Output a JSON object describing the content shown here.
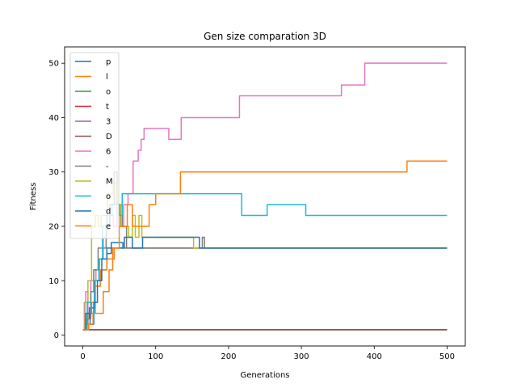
{
  "chart_data": {
    "type": "line",
    "title": "Gen size comparation 3D",
    "xlabel": "Generations",
    "ylabel": "Fitness",
    "xlim": [
      -25,
      525
    ],
    "ylim": [
      -2,
      53
    ],
    "xticks": [
      0,
      100,
      200,
      300,
      400,
      500
    ],
    "yticks": [
      0,
      10,
      20,
      30,
      40,
      50
    ],
    "grid": false,
    "legend_position": "upper-left",
    "series": [
      {
        "name": "p",
        "color": "#1f77b4",
        "points": [
          [
            0,
            1
          ],
          [
            4,
            1
          ],
          [
            4,
            3
          ],
          [
            9,
            3
          ],
          [
            9,
            5
          ],
          [
            16,
            5
          ],
          [
            16,
            10
          ],
          [
            25,
            10
          ],
          [
            25,
            12
          ],
          [
            33,
            12
          ],
          [
            33,
            15
          ],
          [
            39,
            15
          ],
          [
            39,
            17
          ],
          [
            55,
            17
          ],
          [
            55,
            16
          ],
          [
            500,
            16
          ]
        ]
      },
      {
        "name": "l",
        "color": "#ff7f0e",
        "points": [
          [
            0,
            1
          ],
          [
            5,
            1
          ],
          [
            5,
            3
          ],
          [
            11,
            3
          ],
          [
            11,
            6
          ],
          [
            17,
            6
          ],
          [
            17,
            9
          ],
          [
            24,
            9
          ],
          [
            24,
            12
          ],
          [
            33,
            12
          ],
          [
            33,
            14
          ],
          [
            43,
            14
          ],
          [
            43,
            16
          ],
          [
            500,
            16
          ]
        ]
      },
      {
        "name": "o",
        "color": "#2ca02c",
        "points": [
          [
            0,
            1
          ],
          [
            500,
            1
          ]
        ]
      },
      {
        "name": "t",
        "color": "#d62728",
        "points": [
          [
            0,
            1
          ],
          [
            500,
            1
          ]
        ]
      },
      {
        "name": "3",
        "color": "#9467bd",
        "points": [
          [
            0,
            1
          ],
          [
            500,
            1
          ]
        ]
      },
      {
        "name": "D",
        "color": "#8c564b",
        "points": [
          [
            0,
            1
          ],
          [
            500,
            1
          ]
        ]
      },
      {
        "name": "6",
        "color": "#e377c2",
        "points": [
          [
            0,
            1
          ],
          [
            2,
            1
          ],
          [
            2,
            6
          ],
          [
            4,
            6
          ],
          [
            4,
            8
          ],
          [
            7,
            8
          ],
          [
            7,
            4
          ],
          [
            11,
            4
          ],
          [
            11,
            10
          ],
          [
            15,
            10
          ],
          [
            15,
            12
          ],
          [
            18,
            12
          ],
          [
            18,
            10
          ],
          [
            23,
            10
          ],
          [
            23,
            14
          ],
          [
            28,
            14
          ],
          [
            28,
            18
          ],
          [
            33,
            18
          ],
          [
            33,
            20
          ],
          [
            37,
            20
          ],
          [
            37,
            22
          ],
          [
            42,
            22
          ],
          [
            42,
            20
          ],
          [
            47,
            20
          ],
          [
            47,
            24
          ],
          [
            51,
            24
          ],
          [
            51,
            20
          ],
          [
            56,
            20
          ],
          [
            56,
            24
          ],
          [
            62,
            24
          ],
          [
            62,
            26
          ],
          [
            69,
            26
          ],
          [
            69,
            32
          ],
          [
            76,
            32
          ],
          [
            76,
            34
          ],
          [
            80,
            34
          ],
          [
            80,
            36
          ],
          [
            84,
            36
          ],
          [
            84,
            38
          ],
          [
            118,
            38
          ],
          [
            118,
            36
          ],
          [
            135,
            36
          ],
          [
            135,
            40
          ],
          [
            215,
            40
          ],
          [
            215,
            44
          ],
          [
            355,
            44
          ],
          [
            355,
            46
          ],
          [
            387,
            46
          ],
          [
            387,
            50
          ],
          [
            500,
            50
          ]
        ]
      },
      {
        "name": "-",
        "color": "#7f7f7f",
        "points": [
          [
            0,
            1
          ],
          [
            3,
            1
          ],
          [
            3,
            2
          ],
          [
            7,
            2
          ],
          [
            7,
            4
          ],
          [
            11,
            4
          ],
          [
            11,
            8
          ],
          [
            15,
            8
          ],
          [
            15,
            12
          ],
          [
            21,
            12
          ],
          [
            21,
            16
          ],
          [
            32,
            16
          ],
          [
            32,
            20
          ],
          [
            37,
            20
          ],
          [
            37,
            24
          ],
          [
            43,
            24
          ],
          [
            43,
            30
          ],
          [
            47,
            30
          ],
          [
            47,
            24
          ],
          [
            54,
            24
          ],
          [
            54,
            20
          ],
          [
            60,
            20
          ],
          [
            60,
            16
          ],
          [
            164,
            16
          ],
          [
            164,
            18
          ],
          [
            167,
            18
          ],
          [
            167,
            16
          ],
          [
            500,
            16
          ]
        ]
      },
      {
        "name": "M",
        "color": "#bcbd22",
        "points": [
          [
            0,
            1
          ],
          [
            3,
            1
          ],
          [
            3,
            6
          ],
          [
            7,
            6
          ],
          [
            7,
            10
          ],
          [
            12,
            10
          ],
          [
            12,
            20
          ],
          [
            17,
            20
          ],
          [
            17,
            22
          ],
          [
            21,
            22
          ],
          [
            21,
            20
          ],
          [
            25,
            20
          ],
          [
            25,
            22
          ],
          [
            34,
            22
          ],
          [
            34,
            26
          ],
          [
            42,
            26
          ],
          [
            42,
            28
          ],
          [
            46,
            28
          ],
          [
            46,
            24
          ],
          [
            52,
            24
          ],
          [
            52,
            20
          ],
          [
            63,
            20
          ],
          [
            63,
            18
          ],
          [
            68,
            18
          ],
          [
            68,
            22
          ],
          [
            72,
            22
          ],
          [
            72,
            18
          ],
          [
            77,
            18
          ],
          [
            77,
            22
          ],
          [
            81,
            22
          ],
          [
            81,
            18
          ],
          [
            152,
            18
          ],
          [
            152,
            16
          ],
          [
            500,
            16
          ]
        ]
      },
      {
        "name": "o",
        "color": "#17becf",
        "points": [
          [
            0,
            1
          ],
          [
            6,
            1
          ],
          [
            6,
            6
          ],
          [
            12,
            6
          ],
          [
            12,
            4
          ],
          [
            17,
            4
          ],
          [
            17,
            10
          ],
          [
            22,
            10
          ],
          [
            22,
            14
          ],
          [
            27,
            14
          ],
          [
            27,
            20
          ],
          [
            33,
            20
          ],
          [
            33,
            22
          ],
          [
            40,
            22
          ],
          [
            40,
            24
          ],
          [
            50,
            24
          ],
          [
            50,
            22
          ],
          [
            54,
            22
          ],
          [
            54,
            26
          ],
          [
            218,
            26
          ],
          [
            218,
            22
          ],
          [
            253,
            22
          ],
          [
            253,
            24
          ],
          [
            306,
            24
          ],
          [
            306,
            22
          ],
          [
            500,
            22
          ]
        ]
      },
      {
        "name": "d",
        "color": "#1f77b4",
        "points": [
          [
            0,
            1
          ],
          [
            4,
            1
          ],
          [
            4,
            4
          ],
          [
            10,
            4
          ],
          [
            10,
            2
          ],
          [
            15,
            2
          ],
          [
            15,
            6
          ],
          [
            20,
            6
          ],
          [
            20,
            10
          ],
          [
            26,
            10
          ],
          [
            26,
            14
          ],
          [
            33,
            14
          ],
          [
            33,
            16
          ],
          [
            57,
            16
          ],
          [
            57,
            18
          ],
          [
            68,
            18
          ],
          [
            68,
            16
          ],
          [
            82,
            16
          ],
          [
            82,
            18
          ],
          [
            160,
            18
          ],
          [
            160,
            16
          ],
          [
            500,
            16
          ]
        ]
      },
      {
        "name": "e",
        "color": "#ff7f0e",
        "points": [
          [
            0,
            1
          ],
          [
            8,
            1
          ],
          [
            8,
            2
          ],
          [
            14,
            2
          ],
          [
            14,
            4
          ],
          [
            28,
            4
          ],
          [
            28,
            8
          ],
          [
            36,
            8
          ],
          [
            36,
            12
          ],
          [
            41,
            12
          ],
          [
            41,
            16
          ],
          [
            50,
            16
          ],
          [
            50,
            20
          ],
          [
            61,
            20
          ],
          [
            61,
            24
          ],
          [
            68,
            24
          ],
          [
            68,
            20
          ],
          [
            91,
            20
          ],
          [
            91,
            24
          ],
          [
            100,
            24
          ],
          [
            100,
            26
          ],
          [
            134,
            26
          ],
          [
            134,
            30
          ],
          [
            445,
            30
          ],
          [
            445,
            32
          ],
          [
            500,
            32
          ]
        ]
      }
    ]
  }
}
